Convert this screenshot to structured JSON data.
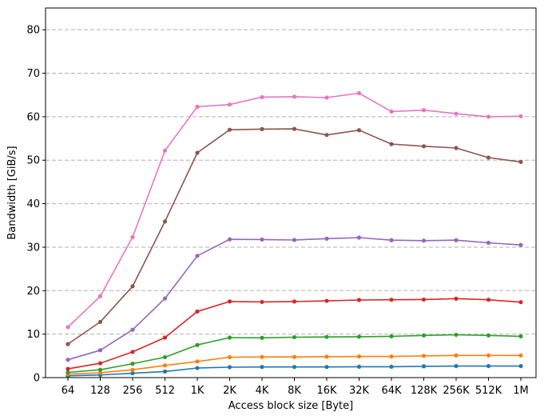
{
  "chart_data": {
    "type": "line",
    "title": "",
    "xlabel": "Access block size [Byte]",
    "ylabel": "Bandwidth [GiB/s]",
    "ylim": [
      0,
      85
    ],
    "yticks": [
      0,
      10,
      20,
      30,
      40,
      50,
      60,
      70,
      80
    ],
    "grid": "y-dashed",
    "legend": "none",
    "categories": [
      "64",
      "128",
      "256",
      "512",
      "1K",
      "2K",
      "4K",
      "8K",
      "16K",
      "32K",
      "64K",
      "128K",
      "256K",
      "512K",
      "1M"
    ],
    "series": [
      {
        "color": "#1f77b4",
        "values": [
          0.4,
          0.6,
          1.0,
          1.4,
          2.2,
          2.4,
          2.45,
          2.45,
          2.45,
          2.5,
          2.5,
          2.6,
          2.65,
          2.65,
          2.65
        ]
      },
      {
        "color": "#ff7f0e",
        "values": [
          0.8,
          1.1,
          1.8,
          2.8,
          3.7,
          4.7,
          4.75,
          4.75,
          4.8,
          4.85,
          4.85,
          5.0,
          5.1,
          5.1,
          5.1
        ]
      },
      {
        "color": "#2ca02c",
        "values": [
          1.2,
          1.8,
          3.2,
          4.7,
          7.5,
          9.2,
          9.15,
          9.3,
          9.35,
          9.4,
          9.5,
          9.7,
          9.85,
          9.7,
          9.5
        ]
      },
      {
        "color": "#d62728",
        "values": [
          2.0,
          3.3,
          5.9,
          9.2,
          15.2,
          17.5,
          17.4,
          17.5,
          17.65,
          17.85,
          17.9,
          17.95,
          18.15,
          17.9,
          17.35
        ]
      },
      {
        "color": "#9467bd",
        "values": [
          4.1,
          6.3,
          11.0,
          18.2,
          28.0,
          31.8,
          31.75,
          31.65,
          31.95,
          32.2,
          31.6,
          31.5,
          31.6,
          31.0,
          30.5
        ]
      },
      {
        "color": "#8c564b",
        "values": [
          7.7,
          12.8,
          21.0,
          35.9,
          51.7,
          57.0,
          57.15,
          57.2,
          55.8,
          56.9,
          53.7,
          53.2,
          52.8,
          50.6,
          49.6
        ]
      },
      {
        "color": "#e377c2",
        "values": [
          11.6,
          18.7,
          32.3,
          52.2,
          62.3,
          62.8,
          64.5,
          64.6,
          64.4,
          65.4,
          61.2,
          61.5,
          60.7,
          60.0,
          60.1
        ]
      }
    ]
  }
}
